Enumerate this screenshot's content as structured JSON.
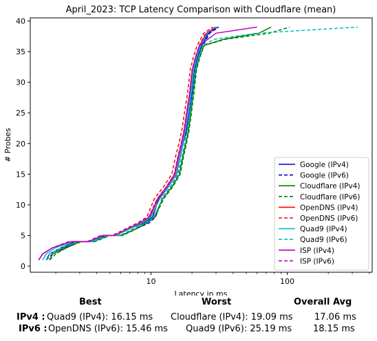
{
  "chart_data": {
    "type": "line",
    "title": "April_2023: TCP Latency Comparison with Cloudflare (mean)",
    "xlabel": "Latency in ms",
    "ylabel": "# Probes",
    "xscale": "log",
    "xlim": [
      1.3,
      420
    ],
    "ylim": [
      -1,
      40.5
    ],
    "x_ticks": [
      {
        "value": 10,
        "label": "10"
      },
      {
        "value": 100,
        "label": "100"
      }
    ],
    "y_ticks": [
      0,
      5,
      10,
      15,
      20,
      25,
      30,
      35,
      40
    ],
    "legend_position": "lower-right",
    "series": [
      {
        "name": "Google (IPv4)",
        "color": "#0000cc",
        "dash": "solid",
        "x": [
          1.7,
          1.8,
          2.2,
          2.8,
          3.6,
          4.6,
          5.5,
          6.8,
          8.8,
          10.3,
          11.4,
          13.5,
          15.4,
          16.4,
          17.2,
          18.2,
          19.1,
          20.0,
          20.9,
          22.0,
          23.6,
          26.4,
          30.8
        ],
        "y": [
          1,
          2,
          3,
          4,
          4,
          5,
          5,
          6,
          7,
          8,
          11,
          13,
          15,
          18,
          20,
          22,
          25,
          28,
          32,
          34,
          36,
          38,
          39
        ]
      },
      {
        "name": "Google (IPv6)",
        "color": "#0000cc",
        "dash": "dashed",
        "x": [
          1.7,
          1.9,
          2.4,
          3.0,
          3.8,
          4.8,
          6.0,
          7.6,
          9.6,
          10.8,
          12.0,
          14.0,
          15.8,
          16.9,
          17.8,
          18.6,
          19.4,
          20.3,
          21.2,
          22.4,
          24.0,
          27.0,
          31.4
        ],
        "y": [
          1,
          2,
          3,
          4,
          4,
          5,
          5,
          6,
          7,
          8,
          11,
          13,
          15,
          18,
          20,
          22,
          25,
          28,
          32,
          34,
          36,
          38,
          39
        ]
      },
      {
        "name": "Cloudflare (IPv4)",
        "color": "#008000",
        "dash": "solid",
        "x": [
          1.8,
          1.9,
          2.3,
          3.0,
          3.8,
          4.9,
          6.1,
          7.6,
          9.2,
          10.6,
          12.2,
          14.3,
          16.2,
          17.2,
          18.0,
          18.8,
          19.6,
          20.4,
          21.4,
          22.6,
          24.4,
          34.0,
          62.0,
          76.0
        ],
        "y": [
          1,
          2,
          3,
          4,
          4,
          5,
          5,
          6,
          7,
          8,
          11,
          13,
          15,
          18,
          20,
          22,
          25,
          28,
          32,
          34,
          36,
          37,
          38,
          39
        ]
      },
      {
        "name": "Cloudflare (IPv6)",
        "color": "#008000",
        "dash": "dashed",
        "x": [
          1.8,
          2.0,
          2.4,
          3.1,
          3.9,
          5.0,
          6.2,
          7.7,
          9.3,
          10.7,
          12.4,
          14.5,
          16.4,
          17.4,
          18.2,
          19.0,
          19.8,
          20.6,
          21.6,
          22.8,
          24.6,
          35.0,
          74.0,
          104.0
        ],
        "y": [
          1,
          2,
          3,
          4,
          4,
          5,
          5,
          6,
          7,
          8,
          11,
          13,
          15,
          18,
          20,
          22,
          25,
          28,
          32,
          34,
          36,
          37,
          38,
          39
        ]
      },
      {
        "name": "OpenDNS (IPv4)",
        "color": "#ff0000",
        "dash": "solid",
        "x": [
          1.5,
          1.6,
          1.9,
          2.6,
          3.5,
          4.4,
          5.4,
          6.7,
          8.3,
          9.8,
          11.3,
          13.2,
          15.0,
          16.0,
          16.8,
          17.6,
          18.4,
          19.3,
          20.2,
          21.3,
          22.8,
          25.6,
          29.6
        ],
        "y": [
          1,
          2,
          3,
          4,
          4,
          5,
          5,
          6,
          7,
          8,
          11,
          13,
          15,
          18,
          20,
          22,
          25,
          28,
          32,
          34,
          36,
          38,
          39
        ]
      },
      {
        "name": "OpenDNS (IPv6)",
        "color": "#ff0000",
        "dash": "dashed",
        "x": [
          1.5,
          1.6,
          1.9,
          2.5,
          3.4,
          4.3,
          5.2,
          6.4,
          7.9,
          9.3,
          10.6,
          12.4,
          14.2,
          15.2,
          16.0,
          16.8,
          17.6,
          18.5,
          19.4,
          20.4,
          21.8,
          24.4,
          28.4
        ],
        "y": [
          1,
          2,
          3,
          4,
          4,
          5,
          5,
          6,
          7,
          8,
          11,
          13,
          15,
          18,
          20,
          22,
          25,
          28,
          32,
          34,
          36,
          38,
          39
        ]
      },
      {
        "name": "Quad9 (IPv4)",
        "color": "#00bfbf",
        "dash": "solid",
        "x": [
          1.6,
          1.7,
          2.0,
          2.7,
          3.6,
          4.5,
          5.5,
          6.9,
          8.5,
          10.0,
          11.6,
          13.5,
          15.3,
          16.3,
          17.1,
          17.9,
          18.7,
          19.6,
          20.5,
          21.6,
          23.2,
          26.0,
          30.2
        ],
        "y": [
          1,
          2,
          3,
          4,
          4,
          5,
          5,
          6,
          7,
          8,
          11,
          13,
          15,
          18,
          20,
          22,
          25,
          28,
          32,
          34,
          36,
          38,
          39
        ]
      },
      {
        "name": "Quad9 (IPv6)",
        "color": "#00bfbf",
        "dash": "dashed",
        "x": [
          1.7,
          1.8,
          2.2,
          2.9,
          3.8,
          4.8,
          5.9,
          7.3,
          9.0,
          10.5,
          12.1,
          14.1,
          15.9,
          16.9,
          17.7,
          18.5,
          19.3,
          20.2,
          21.1,
          22.3,
          24.0,
          29.0,
          60.0,
          330.0
        ],
        "y": [
          1,
          2,
          3,
          4,
          4,
          5,
          5,
          6,
          7,
          8,
          11,
          13,
          15,
          18,
          20,
          22,
          25,
          28,
          32,
          34,
          36,
          37,
          38,
          39
        ]
      },
      {
        "name": "ISP (IPv4)",
        "color": "#bf00bf",
        "dash": "solid",
        "x": [
          1.5,
          1.6,
          1.9,
          2.6,
          3.5,
          4.4,
          5.4,
          6.6,
          8.2,
          9.7,
          11.2,
          13.1,
          14.9,
          15.9,
          16.7,
          17.5,
          18.3,
          19.2,
          20.1,
          21.2,
          22.7,
          30.0,
          60.0
        ],
        "y": [
          1,
          2,
          3,
          4,
          4,
          5,
          5,
          6,
          7,
          8,
          11,
          13,
          15,
          18,
          20,
          22,
          25,
          28,
          32,
          34,
          36,
          38,
          39
        ]
      },
      {
        "name": "ISP (IPv6)",
        "color": "#bf00bf",
        "dash": "dashed",
        "x": [
          1.5,
          1.6,
          1.9,
          2.5,
          3.4,
          4.3,
          5.3,
          6.5,
          8.1,
          9.6,
          11.1,
          13.0,
          14.8,
          15.8,
          16.6,
          17.4,
          18.2,
          19.1,
          20.0,
          21.1,
          22.6,
          25.2,
          31.0
        ],
        "y": [
          1,
          2,
          3,
          4,
          4,
          5,
          5,
          6,
          7,
          8,
          11,
          13,
          15,
          18,
          20,
          22,
          25,
          28,
          32,
          34,
          36,
          38,
          39
        ]
      }
    ]
  },
  "stats": {
    "headers": {
      "best": "Best",
      "worst": "Worst",
      "avg": "Overall Avg"
    },
    "rows": [
      {
        "label": "IPv4 :",
        "best": "Quad9 (IPv4): 16.15 ms",
        "worst": "Cloudflare (IPv4): 19.09 ms",
        "avg": "17.06 ms"
      },
      {
        "label": "IPv6 :",
        "best": "OpenDNS (IPv6): 15.46 ms",
        "worst": "Quad9 (IPv6): 25.19 ms",
        "avg": "18.15 ms"
      }
    ]
  }
}
